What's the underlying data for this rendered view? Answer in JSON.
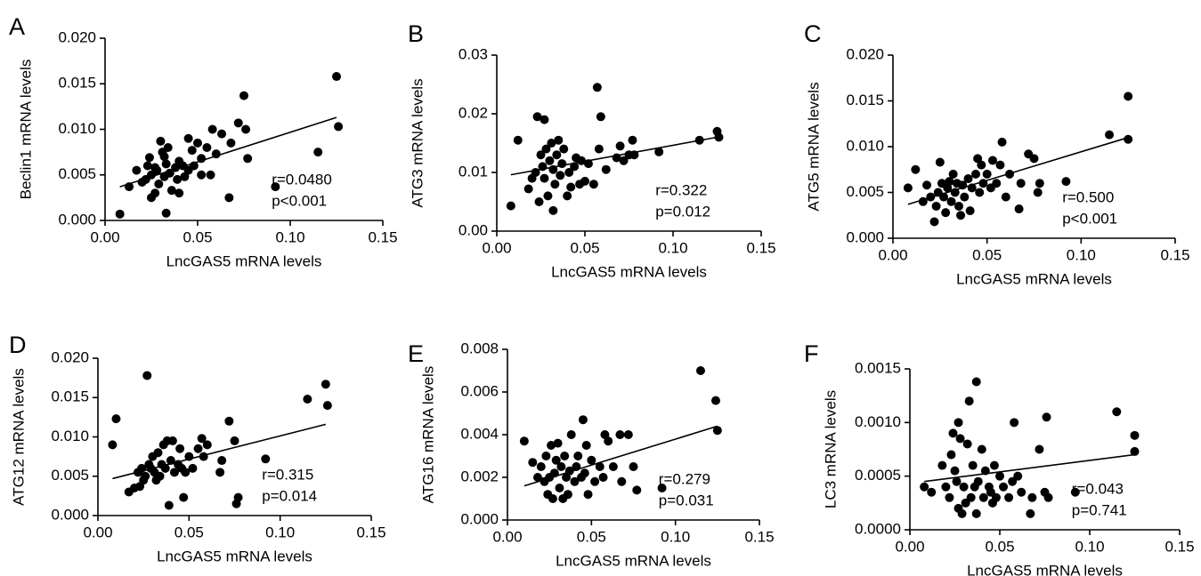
{
  "chart_data": [
    {
      "type": "scatter",
      "panel": "A",
      "x_label": "LncGAS5 mRNA levels",
      "y_label": "Beclin1 mRNA levels",
      "annotations": [
        "r=0.0480",
        "p<0.001"
      ],
      "color": "#000000",
      "xlim": [
        0,
        0.15
      ],
      "ylim": [
        0,
        0.02
      ],
      "xticks": [
        {
          "value": 0,
          "label": "0.00"
        },
        {
          "value": 0.05,
          "label": "0.05"
        },
        {
          "value": 0.1,
          "label": "0.10"
        },
        {
          "value": 0.15,
          "label": "0.15"
        }
      ],
      "yticks": [
        {
          "value": 0,
          "label": "0.000"
        },
        {
          "value": 0.005,
          "label": "0.005"
        },
        {
          "value": 0.01,
          "label": "0.010"
        },
        {
          "value": 0.015,
          "label": "0.015"
        },
        {
          "value": 0.02,
          "label": "0.020"
        }
      ],
      "x": [
        0.008,
        0.013,
        0.017,
        0.02,
        0.022,
        0.023,
        0.024,
        0.025,
        0.025,
        0.027,
        0.027,
        0.028,
        0.029,
        0.03,
        0.031,
        0.032,
        0.032,
        0.033,
        0.033,
        0.034,
        0.035,
        0.036,
        0.038,
        0.039,
        0.04,
        0.04,
        0.042,
        0.043,
        0.045,
        0.045,
        0.047,
        0.048,
        0.05,
        0.052,
        0.052,
        0.055,
        0.057,
        0.058,
        0.06,
        0.063,
        0.067,
        0.068,
        0.072,
        0.075,
        0.076,
        0.077,
        0.092,
        0.115,
        0.125,
        0.126
      ],
      "y": [
        0.0007,
        0.0037,
        0.0055,
        0.0042,
        0.0045,
        0.006,
        0.0069,
        0.005,
        0.0025,
        0.003,
        0.0058,
        0.0055,
        0.004,
        0.0087,
        0.0075,
        0.007,
        0.0048,
        0.0062,
        0.0008,
        0.008,
        0.0052,
        0.0033,
        0.0058,
        0.0045,
        0.003,
        0.0065,
        0.006,
        0.0048,
        0.009,
        0.0055,
        0.0077,
        0.006,
        0.0085,
        0.0068,
        0.005,
        0.008,
        0.005,
        0.01,
        0.0073,
        0.0095,
        0.0025,
        0.0085,
        0.0107,
        0.0137,
        0.01,
        0.0068,
        0.0037,
        0.0075,
        0.0158,
        0.0103
      ],
      "fit": {
        "x": [
          0.008,
          0.125
        ],
        "y": [
          0.0037,
          0.0113
        ]
      }
    },
    {
      "type": "scatter",
      "panel": "B",
      "x_label": "LncGAS5 mRNA levels",
      "y_label": "ATG3 mRNA levels",
      "annotations": [
        "r=0.322",
        "p=0.012"
      ],
      "color": "#000000",
      "xlim": [
        0,
        0.15
      ],
      "ylim": [
        0,
        0.03
      ],
      "xticks": [
        {
          "value": 0,
          "label": "0.00"
        },
        {
          "value": 0.05,
          "label": "0.05"
        },
        {
          "value": 0.1,
          "label": "0.10"
        },
        {
          "value": 0.15,
          "label": "0.15"
        }
      ],
      "yticks": [
        {
          "value": 0,
          "label": "0.00"
        },
        {
          "value": 0.01,
          "label": "0.01"
        },
        {
          "value": 0.02,
          "label": "0.02"
        },
        {
          "value": 0.03,
          "label": "0.03"
        }
      ],
      "x": [
        0.008,
        0.012,
        0.018,
        0.02,
        0.022,
        0.023,
        0.024,
        0.025,
        0.026,
        0.027,
        0.027,
        0.028,
        0.029,
        0.03,
        0.031,
        0.032,
        0.032,
        0.033,
        0.034,
        0.035,
        0.036,
        0.037,
        0.038,
        0.04,
        0.041,
        0.042,
        0.044,
        0.045,
        0.047,
        0.048,
        0.05,
        0.052,
        0.055,
        0.057,
        0.058,
        0.059,
        0.062,
        0.068,
        0.07,
        0.072,
        0.075,
        0.077,
        0.078,
        0.092,
        0.115,
        0.125,
        0.126
      ],
      "y": [
        0.0043,
        0.0155,
        0.0072,
        0.009,
        0.01,
        0.0195,
        0.005,
        0.013,
        0.011,
        0.019,
        0.009,
        0.014,
        0.006,
        0.012,
        0.015,
        0.0105,
        0.0035,
        0.008,
        0.013,
        0.0155,
        0.0095,
        0.0115,
        0.014,
        0.006,
        0.01,
        0.0075,
        0.011,
        0.0125,
        0.008,
        0.012,
        0.0085,
        0.0115,
        0.008,
        0.0245,
        0.014,
        0.0195,
        0.0105,
        0.0125,
        0.0145,
        0.012,
        0.013,
        0.0155,
        0.013,
        0.0135,
        0.0155,
        0.017,
        0.016
      ],
      "fit": {
        "x": [
          0.008,
          0.125
        ],
        "y": [
          0.0096,
          0.016
        ]
      }
    },
    {
      "type": "scatter",
      "panel": "C",
      "x_label": "LncGAS5 mRNA levels",
      "y_label": "ATG5 mRNA levels",
      "annotations": [
        "r=0.500",
        "p<0.001"
      ],
      "color": "#000000",
      "xlim": [
        0,
        0.15
      ],
      "ylim": [
        0,
        0.02
      ],
      "xticks": [
        {
          "value": 0,
          "label": "0.00"
        },
        {
          "value": 0.05,
          "label": "0.05"
        },
        {
          "value": 0.1,
          "label": "0.10"
        },
        {
          "value": 0.15,
          "label": "0.15"
        }
      ],
      "yticks": [
        {
          "value": 0,
          "label": "0.000"
        },
        {
          "value": 0.005,
          "label": "0.005"
        },
        {
          "value": 0.01,
          "label": "0.010"
        },
        {
          "value": 0.015,
          "label": "0.015"
        },
        {
          "value": 0.02,
          "label": "0.020"
        }
      ],
      "x": [
        0.008,
        0.012,
        0.016,
        0.018,
        0.02,
        0.022,
        0.023,
        0.024,
        0.025,
        0.026,
        0.027,
        0.028,
        0.029,
        0.03,
        0.031,
        0.032,
        0.033,
        0.034,
        0.035,
        0.036,
        0.037,
        0.038,
        0.04,
        0.041,
        0.042,
        0.044,
        0.045,
        0.046,
        0.047,
        0.048,
        0.05,
        0.052,
        0.053,
        0.055,
        0.057,
        0.058,
        0.06,
        0.062,
        0.067,
        0.068,
        0.072,
        0.075,
        0.077,
        0.078,
        0.092,
        0.115,
        0.125,
        0.125
      ],
      "y": [
        0.0055,
        0.0075,
        0.004,
        0.0058,
        0.0045,
        0.0018,
        0.0035,
        0.005,
        0.0083,
        0.006,
        0.0045,
        0.0028,
        0.0055,
        0.0062,
        0.004,
        0.007,
        0.005,
        0.006,
        0.0035,
        0.0025,
        0.0058,
        0.0045,
        0.0065,
        0.003,
        0.0055,
        0.007,
        0.0087,
        0.005,
        0.008,
        0.006,
        0.007,
        0.0055,
        0.0085,
        0.006,
        0.008,
        0.0105,
        0.0045,
        0.007,
        0.0032,
        0.006,
        0.0092,
        0.0087,
        0.005,
        0.006,
        0.0062,
        0.0113,
        0.0155,
        0.0108
      ],
      "fit": {
        "x": [
          0.008,
          0.125
        ],
        "y": [
          0.0037,
          0.011
        ]
      }
    },
    {
      "type": "scatter",
      "panel": "D",
      "x_label": "LncGAS5 mRNA levels",
      "y_label": "ATG12 mRNA levels",
      "annotations": [
        "r=0.315",
        "p=0.014"
      ],
      "color": "#000000",
      "xlim": [
        0,
        0.15
      ],
      "ylim": [
        0,
        0.02
      ],
      "xticks": [
        {
          "value": 0,
          "label": "0.00"
        },
        {
          "value": 0.05,
          "label": "0.05"
        },
        {
          "value": 0.1,
          "label": "0.10"
        },
        {
          "value": 0.15,
          "label": "0.15"
        }
      ],
      "yticks": [
        {
          "value": 0,
          "label": "0.000"
        },
        {
          "value": 0.005,
          "label": "0.005"
        },
        {
          "value": 0.01,
          "label": "0.010"
        },
        {
          "value": 0.015,
          "label": "0.015"
        },
        {
          "value": 0.02,
          "label": "0.020"
        }
      ],
      "x": [
        0.008,
        0.01,
        0.017,
        0.02,
        0.022,
        0.023,
        0.024,
        0.025,
        0.026,
        0.027,
        0.028,
        0.029,
        0.03,
        0.031,
        0.032,
        0.033,
        0.034,
        0.035,
        0.036,
        0.037,
        0.038,
        0.039,
        0.04,
        0.041,
        0.042,
        0.044,
        0.045,
        0.046,
        0.047,
        0.048,
        0.05,
        0.052,
        0.055,
        0.057,
        0.058,
        0.06,
        0.067,
        0.068,
        0.072,
        0.075,
        0.076,
        0.077,
        0.092,
        0.115,
        0.125,
        0.126
      ],
      "y": [
        0.009,
        0.0123,
        0.003,
        0.0035,
        0.0055,
        0.0037,
        0.006,
        0.0045,
        0.005,
        0.0178,
        0.0065,
        0.006,
        0.0075,
        0.0055,
        0.0045,
        0.008,
        0.005,
        0.0065,
        0.009,
        0.006,
        0.0095,
        0.0013,
        0.007,
        0.0095,
        0.0055,
        0.0065,
        0.0085,
        0.006,
        0.0023,
        0.0055,
        0.0075,
        0.006,
        0.0085,
        0.0098,
        0.0075,
        0.009,
        0.0055,
        0.007,
        0.012,
        0.0095,
        0.0015,
        0.0023,
        0.0072,
        0.0148,
        0.0167,
        0.014
      ],
      "fit": {
        "x": [
          0.008,
          0.125
        ],
        "y": [
          0.0047,
          0.0116
        ]
      }
    },
    {
      "type": "scatter",
      "panel": "E",
      "x_label": "LncGAS5 mRNA levels",
      "y_label": "ATG16 mRNA levels",
      "annotations": [
        "r=0.279",
        "p=0.031"
      ],
      "color": "#000000",
      "xlim": [
        0,
        0.15
      ],
      "ylim": [
        0,
        0.008
      ],
      "xticks": [
        {
          "value": 0,
          "label": "0.00"
        },
        {
          "value": 0.05,
          "label": "0.05"
        },
        {
          "value": 0.1,
          "label": "0.10"
        },
        {
          "value": 0.15,
          "label": "0.15"
        }
      ],
      "yticks": [
        {
          "value": 0,
          "label": "0.000"
        },
        {
          "value": 0.002,
          "label": "0.002"
        },
        {
          "value": 0.004,
          "label": "0.004"
        },
        {
          "value": 0.006,
          "label": "0.006"
        },
        {
          "value": 0.008,
          "label": "0.008"
        }
      ],
      "x": [
        0.01,
        0.015,
        0.018,
        0.02,
        0.022,
        0.023,
        0.024,
        0.025,
        0.026,
        0.027,
        0.028,
        0.029,
        0.03,
        0.031,
        0.032,
        0.033,
        0.034,
        0.035,
        0.036,
        0.037,
        0.038,
        0.04,
        0.041,
        0.042,
        0.044,
        0.045,
        0.046,
        0.047,
        0.048,
        0.05,
        0.052,
        0.055,
        0.057,
        0.058,
        0.06,
        0.063,
        0.067,
        0.068,
        0.072,
        0.075,
        0.077,
        0.092,
        0.115,
        0.124,
        0.125
      ],
      "y": [
        0.0037,
        0.0027,
        0.002,
        0.0025,
        0.0018,
        0.003,
        0.0012,
        0.002,
        0.0035,
        0.001,
        0.0022,
        0.0028,
        0.0036,
        0.0015,
        0.0025,
        0.001,
        0.003,
        0.002,
        0.0012,
        0.0023,
        0.004,
        0.0018,
        0.0025,
        0.003,
        0.002,
        0.0047,
        0.0022,
        0.0035,
        0.0012,
        0.0028,
        0.0018,
        0.0025,
        0.002,
        0.004,
        0.0037,
        0.0025,
        0.004,
        0.0018,
        0.004,
        0.0025,
        0.0014,
        0.0015,
        0.007,
        0.0056,
        0.0042
      ],
      "fit": {
        "x": [
          0.01,
          0.125
        ],
        "y": [
          0.0016,
          0.0044
        ]
      }
    },
    {
      "type": "scatter",
      "panel": "F",
      "x_label": "LncGAS5 mRNA levels",
      "y_label": "LC3 mRNA levels",
      "annotations": [
        "r=0.043",
        "p=0.741"
      ],
      "color": "#000000",
      "xlim": [
        0,
        0.15
      ],
      "ylim": [
        0,
        0.0015
      ],
      "xticks": [
        {
          "value": 0,
          "label": "0.00"
        },
        {
          "value": 0.05,
          "label": "0.05"
        },
        {
          "value": 0.1,
          "label": "0.10"
        },
        {
          "value": 0.15,
          "label": "0.15"
        }
      ],
      "yticks": [
        {
          "value": 0,
          "label": "0.0000"
        },
        {
          "value": 0.0005,
          "label": "0.0005"
        },
        {
          "value": 0.001,
          "label": "0.0010"
        },
        {
          "value": 0.0015,
          "label": "0.0015"
        }
      ],
      "x": [
        0.008,
        0.012,
        0.018,
        0.02,
        0.022,
        0.023,
        0.024,
        0.025,
        0.026,
        0.027,
        0.027,
        0.028,
        0.029,
        0.03,
        0.031,
        0.032,
        0.033,
        0.034,
        0.035,
        0.036,
        0.037,
        0.037,
        0.038,
        0.04,
        0.041,
        0.042,
        0.044,
        0.045,
        0.046,
        0.047,
        0.048,
        0.05,
        0.052,
        0.055,
        0.057,
        0.058,
        0.06,
        0.062,
        0.067,
        0.068,
        0.072,
        0.075,
        0.076,
        0.077,
        0.092,
        0.115,
        0.125,
        0.125
      ],
      "y": [
        0.0004,
        0.00035,
        0.0006,
        0.0004,
        0.0003,
        0.0007,
        0.0009,
        0.00055,
        0.00045,
        0.001,
        0.0002,
        0.00085,
        0.00015,
        0.0004,
        0.00025,
        0.0008,
        0.0012,
        0.0003,
        0.0006,
        0.0004,
        0.00138,
        0.00015,
        0.00045,
        0.00075,
        0.0003,
        0.00055,
        0.0004,
        0.00035,
        0.00025,
        0.0006,
        0.0003,
        0.0005,
        0.0004,
        0.0003,
        0.00045,
        0.001,
        0.0005,
        0.00035,
        0.00015,
        0.0003,
        0.00075,
        0.00035,
        0.00105,
        0.0003,
        0.00035,
        0.0011,
        0.00088,
        0.00073
      ],
      "fit": {
        "x": [
          0.008,
          0.125
        ],
        "y": [
          0.00045,
          0.0007
        ]
      }
    }
  ]
}
